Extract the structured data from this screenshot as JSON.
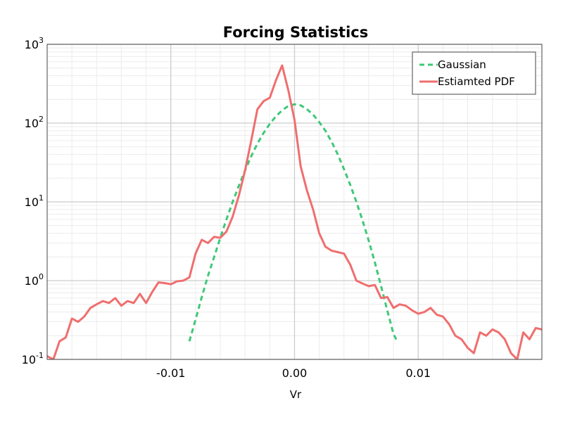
{
  "chart_data": {
    "type": "line",
    "title": "Forcing Statistics",
    "xlabel": "Vr",
    "ylabel": "",
    "xlim": [
      -0.02,
      0.02
    ],
    "ylim_log10": [
      -1,
      3
    ],
    "yscale": "log",
    "grid": true,
    "minor_grid": true,
    "legend_position": "top-right",
    "x_ticks": [
      {
        "value": -0.01,
        "label": "-0.01"
      },
      {
        "value": 0.0,
        "label": "0.00"
      },
      {
        "value": 0.01,
        "label": "0.01"
      }
    ],
    "y_ticks": [
      {
        "exp": -1,
        "base": "10",
        "sup": "-1"
      },
      {
        "exp": 0,
        "base": "10",
        "sup": "0"
      },
      {
        "exp": 1,
        "base": "10",
        "sup": "1"
      },
      {
        "exp": 2,
        "base": "10",
        "sup": "2"
      },
      {
        "exp": 3,
        "base": "10",
        "sup": "3"
      }
    ],
    "colors": {
      "gaussian": "#3ec878",
      "pdf": "#f06e6e",
      "grid": "#cccccc",
      "minor_grid": "#ececec",
      "axis": "#444444"
    },
    "series": [
      {
        "name": "Gaussian",
        "style": "dashed",
        "x": [
          -0.0085,
          -0.008,
          -0.0075,
          -0.007,
          -0.0065,
          -0.006,
          -0.0055,
          -0.005,
          -0.0045,
          -0.004,
          -0.0035,
          -0.003,
          -0.0025,
          -0.002,
          -0.0015,
          -0.001,
          -0.0005,
          0.0,
          0.0005,
          0.001,
          0.0015,
          0.002,
          0.0025,
          0.003,
          0.0035,
          0.004,
          0.0045,
          0.005,
          0.0055,
          0.006,
          0.0065,
          0.007,
          0.0075,
          0.008,
          0.0083
        ],
        "y": [
          0.17,
          0.32,
          0.62,
          1.15,
          2.0,
          3.5,
          6.0,
          10.0,
          16.0,
          25.0,
          38.0,
          55.0,
          75.0,
          98.0,
          122.0,
          145.0,
          165.0,
          173.0,
          168.0,
          150.0,
          128.0,
          103.0,
          80.0,
          58.0,
          40.0,
          26.0,
          16.5,
          10.0,
          5.8,
          3.2,
          1.7,
          0.85,
          0.42,
          0.21,
          0.17
        ]
      },
      {
        "name": "Estiamted PDF",
        "style": "solid",
        "x": [
          -0.02,
          -0.0195,
          -0.019,
          -0.0185,
          -0.018,
          -0.0175,
          -0.017,
          -0.0165,
          -0.016,
          -0.0155,
          -0.015,
          -0.0145,
          -0.014,
          -0.0135,
          -0.013,
          -0.0125,
          -0.012,
          -0.0115,
          -0.011,
          -0.0105,
          -0.01,
          -0.0095,
          -0.009,
          -0.0085,
          -0.008,
          -0.0075,
          -0.007,
          -0.0065,
          -0.006,
          -0.0055,
          -0.005,
          -0.0045,
          -0.004,
          -0.0035,
          -0.003,
          -0.0025,
          -0.002,
          -0.0015,
          -0.001,
          -0.0005,
          0.0,
          0.0005,
          0.001,
          0.0015,
          0.002,
          0.0025,
          0.003,
          0.0035,
          0.004,
          0.0045,
          0.005,
          0.0055,
          0.006,
          0.0065,
          0.007,
          0.0075,
          0.008,
          0.0085,
          0.009,
          0.0095,
          0.01,
          0.0105,
          0.011,
          0.0115,
          0.012,
          0.0125,
          0.013,
          0.0135,
          0.014,
          0.0145,
          0.015,
          0.0155,
          0.016,
          0.0165,
          0.017,
          0.0175,
          0.018,
          0.0185,
          0.019,
          0.0195,
          0.02
        ],
        "y": [
          0.11,
          0.1,
          0.17,
          0.19,
          0.33,
          0.3,
          0.35,
          0.45,
          0.5,
          0.55,
          0.52,
          0.6,
          0.48,
          0.55,
          0.52,
          0.68,
          0.52,
          0.72,
          0.95,
          0.93,
          0.9,
          0.98,
          1.0,
          1.1,
          2.2,
          3.3,
          3.0,
          3.6,
          3.5,
          4.2,
          6.5,
          12.0,
          25.0,
          60.0,
          150.0,
          190.0,
          210.0,
          350.0,
          540.0,
          260.0,
          110.0,
          28.0,
          14.0,
          8.0,
          4.0,
          2.7,
          2.4,
          2.3,
          2.2,
          1.6,
          1.0,
          0.92,
          0.85,
          0.88,
          0.6,
          0.62,
          0.45,
          0.5,
          0.48,
          0.42,
          0.38,
          0.4,
          0.45,
          0.37,
          0.35,
          0.28,
          0.2,
          0.18,
          0.14,
          0.12,
          0.22,
          0.2,
          0.24,
          0.22,
          0.18,
          0.12,
          0.1,
          0.22,
          0.18,
          0.25,
          0.24
        ]
      }
    ]
  }
}
